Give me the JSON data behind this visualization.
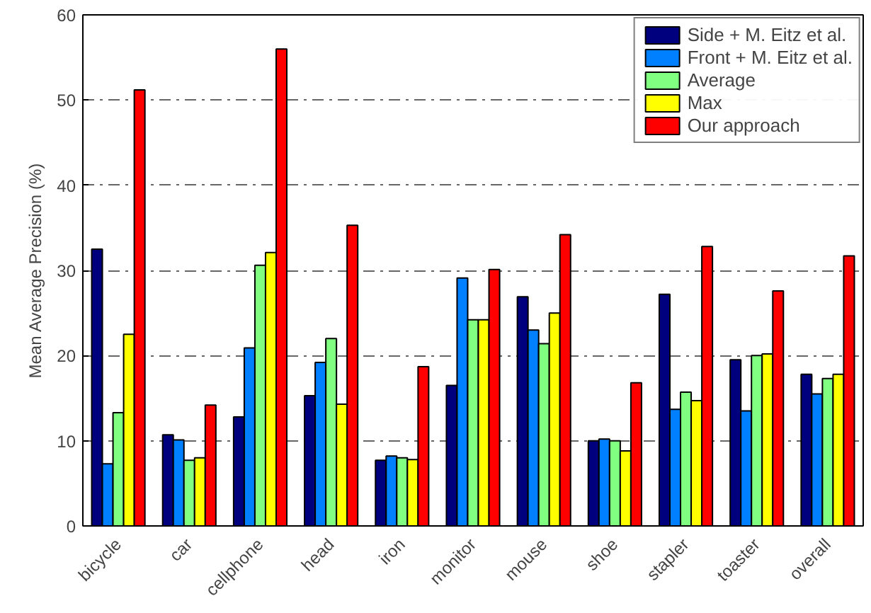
{
  "chart_data": {
    "type": "bar",
    "ylabel": "Mean Average Precision (%)",
    "categories": [
      "bicycle",
      "car",
      "cellphone",
      "head",
      "iron",
      "monitor",
      "mouse",
      "shoe",
      "stapler",
      "toaster",
      "overall"
    ],
    "series": [
      {
        "name": "Side + M. Eitz et al.",
        "color": "#00007f",
        "values": [
          32.5,
          10.7,
          12.8,
          15.3,
          7.7,
          16.5,
          26.9,
          10.0,
          27.2,
          19.5,
          17.8
        ]
      },
      {
        "name": "Front + M. Eitz et al.",
        "color": "#0080ff",
        "values": [
          7.3,
          10.1,
          20.9,
          19.2,
          8.2,
          29.1,
          23.0,
          10.2,
          13.7,
          13.5,
          15.5
        ]
      },
      {
        "name": "Average",
        "color": "#80ff80",
        "values": [
          13.3,
          7.7,
          30.6,
          22.0,
          8.0,
          24.2,
          21.4,
          10.0,
          15.7,
          20.0,
          17.3
        ]
      },
      {
        "name": "Max",
        "color": "#ffff00",
        "values": [
          22.5,
          8.0,
          32.1,
          14.3,
          7.8,
          24.2,
          25.0,
          8.8,
          14.7,
          20.2,
          17.8
        ]
      },
      {
        "name": "Our approach",
        "color": "#ff0000",
        "values": [
          51.2,
          14.2,
          56.0,
          35.3,
          18.7,
          30.1,
          34.2,
          16.8,
          32.8,
          27.6,
          31.7
        ]
      }
    ],
    "ylim": [
      0,
      60
    ],
    "yticks": [
      0,
      10,
      20,
      30,
      40,
      50,
      60
    ],
    "grid": "y",
    "legend": "top right"
  }
}
